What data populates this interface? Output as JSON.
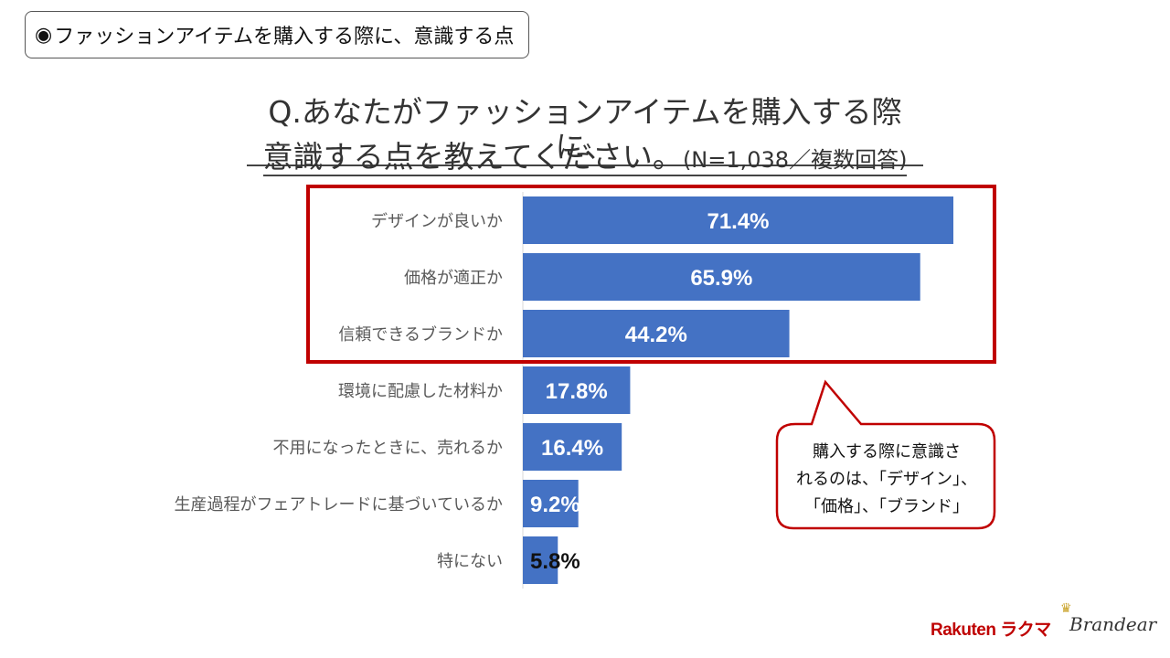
{
  "header": {
    "bullet": "◉",
    "topic": "ファッションアイテムを購入する際に、意識する点"
  },
  "title": {
    "line1": "Q.あなたがファッションアイテムを購入する際に、",
    "line2": "意識する点を教えてください。",
    "line2_sub": "(N=1,038／複数回答)"
  },
  "chart_data": {
    "type": "bar",
    "orientation": "horizontal",
    "categories": [
      "デザインが良いか",
      "価格が適正か",
      "信頼できるブランドか",
      "環境に配慮した材料か",
      "不用になったときに、売れるか",
      "生産過程がフェアトレードに基づいているか",
      "特にない"
    ],
    "values": [
      71.4,
      65.9,
      44.2,
      17.8,
      16.4,
      9.2,
      5.8
    ],
    "value_labels": [
      "71.4%",
      "65.9%",
      "44.2%",
      "17.8%",
      "16.4%",
      "9.2%",
      "5.8%"
    ],
    "xlim": [
      0,
      80
    ],
    "highlighted_categories": [
      0,
      1,
      2
    ],
    "bar_color": "#4472c4",
    "highlight_color": "#c00000"
  },
  "callout": {
    "text_lines": [
      "購入する際に意識さ",
      "れるのは、「デザイン」、",
      "「価格」、「ブランド」"
    ]
  },
  "logos": {
    "rakuten": "Rakuten ラクマ",
    "brandear": "Brandear"
  }
}
